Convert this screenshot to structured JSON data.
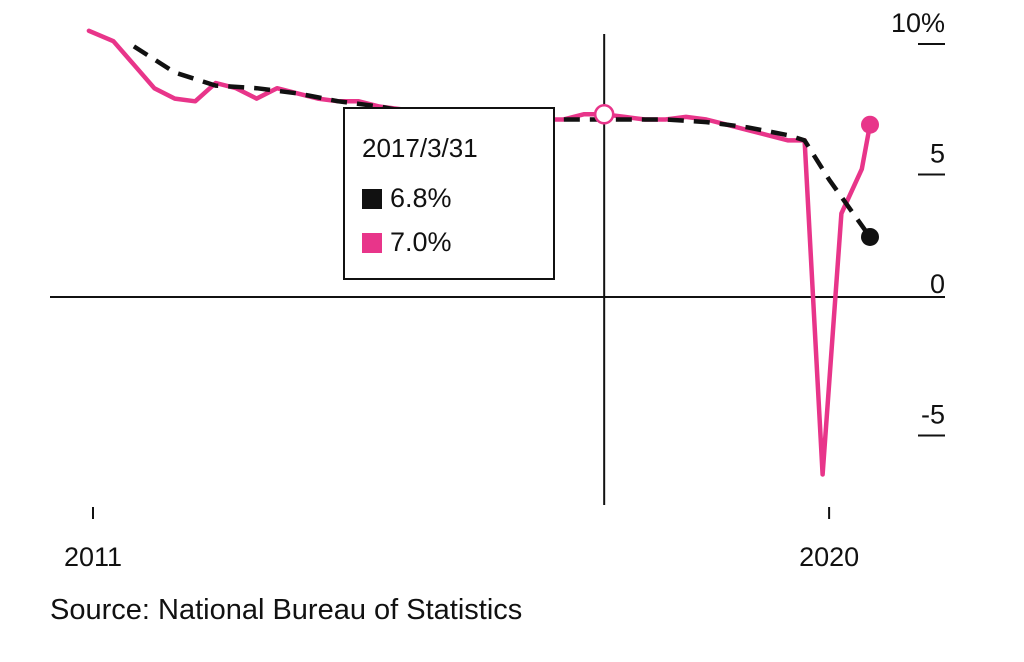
{
  "chart_data": {
    "type": "line",
    "x_ticks": [
      "2011",
      "2020"
    ],
    "y_ticks": [
      "10%",
      "5",
      "0",
      "-5"
    ],
    "ylim": [
      -10,
      10
    ],
    "xlim": [
      2011.0,
      2020.5
    ],
    "grid": false,
    "colors": {
      "black": "#111111",
      "pink": "#e8358a"
    },
    "series": [
      {
        "key": "pink",
        "style": "solid",
        "color": "#e8358a",
        "points": [
          [
            2010.95,
            10.2
          ],
          [
            2011.25,
            9.8
          ],
          [
            2011.5,
            8.9
          ],
          [
            2011.75,
            8.0
          ],
          [
            2012.0,
            7.6
          ],
          [
            2012.25,
            7.5
          ],
          [
            2012.5,
            8.2
          ],
          [
            2012.75,
            8.0
          ],
          [
            2013.0,
            7.6
          ],
          [
            2013.25,
            8.0
          ],
          [
            2013.5,
            7.8
          ],
          [
            2013.75,
            7.6
          ],
          [
            2014.0,
            7.5
          ],
          [
            2014.25,
            7.5
          ],
          [
            2014.5,
            7.3
          ],
          [
            2014.75,
            7.2
          ],
          [
            2015.0,
            7.1
          ],
          [
            2015.25,
            7.0
          ],
          [
            2015.5,
            7.0
          ],
          [
            2015.75,
            6.9
          ],
          [
            2016.0,
            6.8
          ],
          [
            2016.25,
            6.8
          ],
          [
            2016.5,
            6.8
          ],
          [
            2016.75,
            6.8
          ],
          [
            2017.0,
            7.0
          ],
          [
            2017.25,
            7.0
          ],
          [
            2017.5,
            6.9
          ],
          [
            2017.75,
            6.8
          ],
          [
            2018.0,
            6.8
          ],
          [
            2018.25,
            6.9
          ],
          [
            2018.5,
            6.8
          ],
          [
            2018.75,
            6.6
          ],
          [
            2019.0,
            6.4
          ],
          [
            2019.25,
            6.2
          ],
          [
            2019.5,
            6.0
          ],
          [
            2019.7,
            6.0
          ],
          [
            2019.92,
            -6.8
          ],
          [
            2020.15,
            3.2
          ],
          [
            2020.4,
            4.9
          ],
          [
            2020.5,
            6.6
          ]
        ]
      },
      {
        "key": "black",
        "style": "dashed",
        "color": "#111111",
        "points": [
          [
            2011.5,
            9.6
          ],
          [
            2012.0,
            8.6
          ],
          [
            2012.5,
            8.1
          ],
          [
            2013.0,
            8.0
          ],
          [
            2013.5,
            7.8
          ],
          [
            2014.0,
            7.5
          ],
          [
            2014.5,
            7.3
          ],
          [
            2015.0,
            7.0
          ],
          [
            2015.5,
            6.9
          ],
          [
            2016.0,
            6.8
          ],
          [
            2016.5,
            6.8
          ],
          [
            2017.0,
            6.8
          ],
          [
            2017.25,
            6.8
          ],
          [
            2017.5,
            6.8
          ],
          [
            2018.0,
            6.8
          ],
          [
            2018.5,
            6.7
          ],
          [
            2019.0,
            6.5
          ],
          [
            2019.5,
            6.2
          ],
          [
            2019.7,
            6.0
          ],
          [
            2020.0,
            4.5
          ],
          [
            2020.5,
            2.3
          ]
        ]
      }
    ],
    "highlight": {
      "x": 2017.25,
      "label": "2017/3/31",
      "black_value": "6.8%",
      "pink_value": "7.0%"
    }
  },
  "tooltip": {
    "date": "2017/3/31",
    "black_value": "6.8%",
    "pink_value": "7.0%"
  },
  "source": "Source: National Bureau of Statistics"
}
